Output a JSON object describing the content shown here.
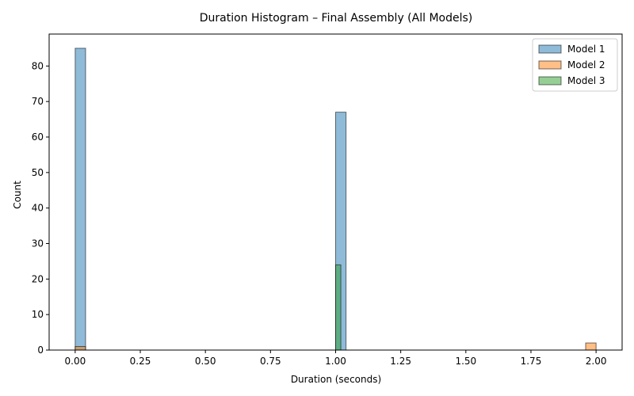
{
  "chart_data": {
    "type": "bar",
    "title": "Duration Histogram – Final Assembly (All Models)",
    "xlabel": "Duration (seconds)",
    "ylabel": "Count",
    "xlim": [
      -0.1,
      2.1
    ],
    "ylim": [
      0,
      89
    ],
    "xticks": [
      0.0,
      0.25,
      0.5,
      0.75,
      1.0,
      1.25,
      1.5,
      1.75,
      2.0
    ],
    "xtick_labels": [
      "0.00",
      "0.25",
      "0.50",
      "0.75",
      "1.00",
      "1.25",
      "1.50",
      "1.75",
      "2.00"
    ],
    "yticks": [
      0,
      10,
      20,
      30,
      40,
      50,
      60,
      70,
      80
    ],
    "ytick_labels": [
      "0",
      "10",
      "20",
      "30",
      "40",
      "50",
      "60",
      "70",
      "80"
    ],
    "grid": false,
    "legend_position": "top-right",
    "series": [
      {
        "name": "Model 1",
        "color": "#1f77b4",
        "bins": [
          {
            "start": 0.0,
            "end": 0.04,
            "count": 85
          },
          {
            "start": 1.0,
            "end": 1.04,
            "count": 67
          }
        ]
      },
      {
        "name": "Model 2",
        "color": "#ff7f0e",
        "bins": [
          {
            "start": 0.0,
            "end": 0.04,
            "count": 1
          },
          {
            "start": 1.96,
            "end": 2.0,
            "count": 2
          }
        ]
      },
      {
        "name": "Model 3",
        "color": "#2ca02c",
        "bins": [
          {
            "start": 1.0,
            "end": 1.02,
            "count": 24
          }
        ]
      }
    ]
  }
}
